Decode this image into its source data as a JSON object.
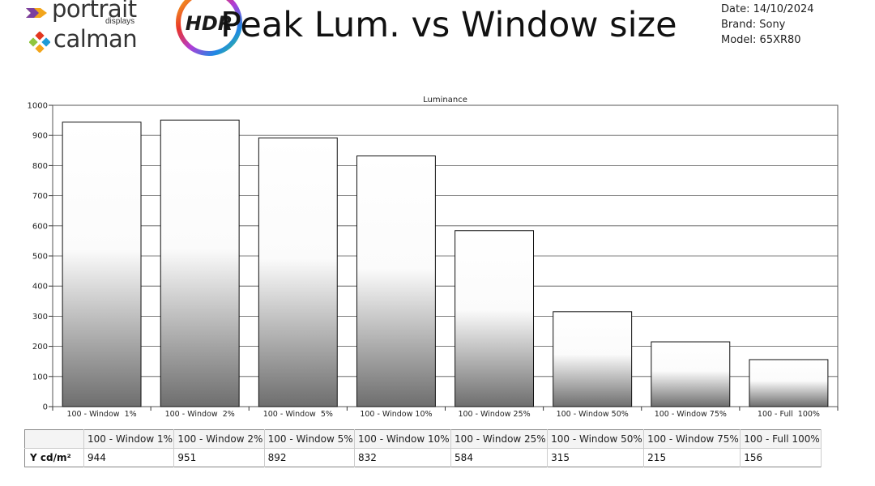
{
  "header": {
    "portrait_word": "portrait",
    "displays_word": "displays",
    "calman_word": "calman",
    "hdr_badge": "HDR",
    "title": "Peak Lum. vs Window size",
    "date": "Date: 14/10/2024",
    "brand": "Brand: Sony",
    "model": "Model: 65XR80"
  },
  "chart_data": {
    "type": "bar",
    "title": "Luminance",
    "xlabel": "",
    "ylabel": "",
    "ylim": [
      0,
      1000
    ],
    "yticks": [
      0,
      100,
      200,
      300,
      400,
      500,
      600,
      700,
      800,
      900,
      1000
    ],
    "grid": true,
    "categories": [
      "100 - Window  1%",
      "100 - Window  2%",
      "100 - Window  5%",
      "100 - Window 10%",
      "100 - Window 25%",
      "100 - Window 50%",
      "100 - Window 75%",
      "100 - Full  100%"
    ],
    "values": [
      944,
      951,
      892,
      832,
      584,
      315,
      215,
      156
    ]
  },
  "table": {
    "row_label": "Y cd/m²",
    "headers": [
      "100 - Window  1%",
      "100 - Window  2%",
      "100 - Window  5%",
      "100 - Window 10%",
      "100 - Window 25%",
      "100 - Window 50%",
      "100 - Window 75%",
      "100 - Full  100%"
    ],
    "values": [
      "944",
      "951",
      "892",
      "832",
      "584",
      "315",
      "215",
      "156"
    ]
  }
}
